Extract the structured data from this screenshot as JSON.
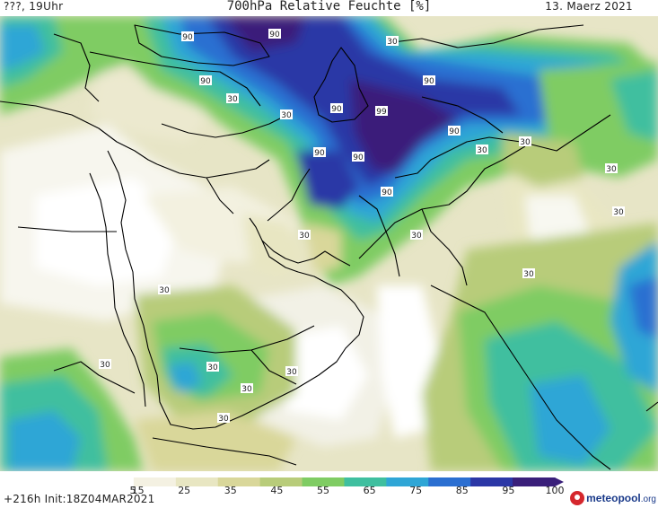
{
  "header": {
    "left": "???, 19Uhr",
    "title": "700hPa Relative Feuchte [%]",
    "right": "13. Maerz 2021"
  },
  "footer": {
    "run_info": "+216h  Init:18Z04MAR2021"
  },
  "brand": {
    "name": "meteopool",
    "tld": ".org",
    "icon": "meteopool-logo-icon"
  },
  "colorbar": {
    "ticks": [
      "5",
      "15",
      "25",
      "35",
      "45",
      "55",
      "65",
      "75",
      "85",
      "95",
      "100"
    ],
    "colors": [
      "#ffffff",
      "#f4f1e2",
      "#e8e6c2",
      "#d9d79a",
      "#b8cc7a",
      "#7fcc63",
      "#3fbf9f",
      "#2fa6d6",
      "#2b6fd1",
      "#2b37a6",
      "#3a1f7a"
    ]
  },
  "map": {
    "contour_labels": [
      "90",
      "90",
      "90",
      "30",
      "90",
      "99",
      "90",
      "90",
      "90",
      "90",
      "90",
      "30",
      "30",
      "30",
      "30",
      "30",
      "30",
      "30",
      "30",
      "30",
      "30",
      "30",
      "30",
      "30",
      "30",
      "30"
    ]
  }
}
